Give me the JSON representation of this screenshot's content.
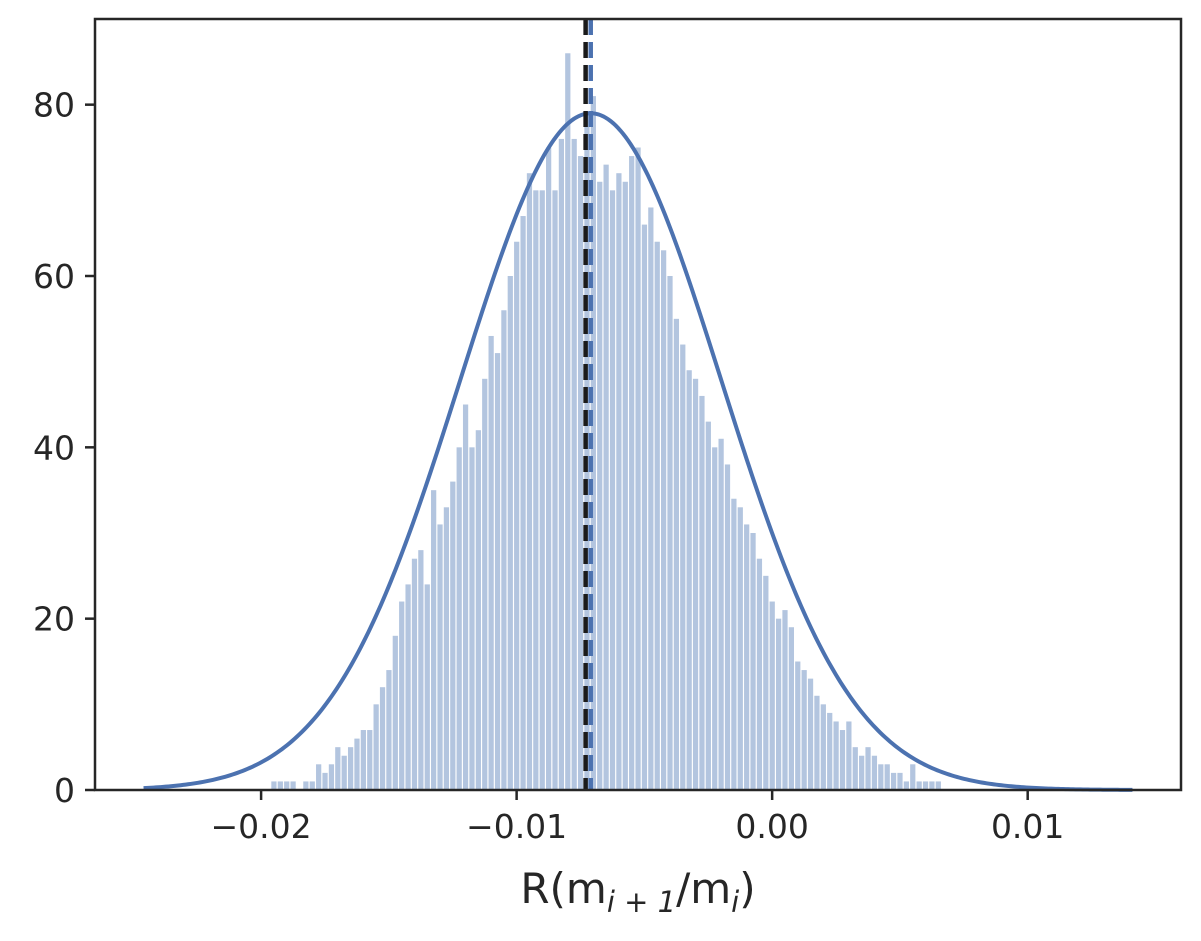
{
  "chart_data": {
    "type": "bar",
    "title": "",
    "xlabel": {
      "prefix": "R(m",
      "sub1": "i + 1",
      "mid": "/m",
      "sub2": "i",
      "suffix": ")"
    },
    "ylabel": "",
    "xlim": [
      -0.0265,
      0.016
    ],
    "ylim": [
      0,
      90
    ],
    "grid": false,
    "legend": "none",
    "x_ticks": [
      -0.02,
      -0.01,
      0.0,
      0.01
    ],
    "x_tick_labels": [
      "−0.02",
      "−0.01",
      "0.00",
      "0.01"
    ],
    "y_ticks": [
      0,
      20,
      40,
      60,
      80
    ],
    "y_tick_labels": [
      "0",
      "20",
      "40",
      "60",
      "80"
    ],
    "histogram": {
      "bin_start": -0.0246,
      "bin_width": 0.00025,
      "counts": [
        0,
        0,
        0,
        0,
        0,
        0,
        0,
        0,
        0,
        0,
        0,
        0,
        0,
        0,
        0,
        0,
        0,
        0,
        0,
        0,
        1,
        1,
        1,
        1,
        0,
        1,
        1,
        3,
        2,
        3,
        5,
        4,
        5,
        6,
        7,
        7,
        10,
        12,
        14,
        18,
        22,
        24,
        27,
        28,
        24,
        35,
        31,
        33,
        36,
        40,
        45,
        40,
        42,
        48,
        53,
        51,
        56,
        60,
        64,
        67,
        72,
        70,
        70,
        75,
        70,
        76,
        86,
        76,
        74,
        79,
        81,
        71,
        73,
        70,
        72,
        71,
        74,
        75,
        66,
        68,
        64,
        63,
        60,
        55,
        52,
        49,
        48,
        46,
        43,
        40,
        41,
        38,
        34,
        33,
        31,
        30,
        27,
        25,
        22,
        20,
        21,
        19,
        15,
        14,
        13,
        11,
        10,
        9,
        8,
        7,
        8,
        5,
        4,
        5,
        4,
        3,
        3,
        2,
        2,
        1,
        3,
        1,
        1,
        1,
        1,
        0,
        0,
        0,
        0,
        0,
        0,
        0,
        0,
        0,
        0,
        0,
        0,
        0,
        0,
        0,
        0,
        0,
        0,
        0,
        0,
        0,
        0,
        0,
        0,
        0,
        0,
        0,
        0,
        0,
        0,
        0,
        0
      ]
    },
    "fit_curve": {
      "name": "",
      "type": "gaussian",
      "mean": -0.0071,
      "sigma": 0.0051,
      "peak": 79,
      "x_range": [
        -0.0246,
        0.0141
      ]
    },
    "vertical_lines": [
      {
        "x": -0.0073,
        "style": "dashed",
        "color": "#1a1a1a"
      },
      {
        "x": -0.0071,
        "style": "dashed",
        "color": "#4c72b0"
      }
    ],
    "colors": {
      "bars": "#b3c5df",
      "curve": "#4c72b0",
      "axes": "#262626"
    }
  }
}
